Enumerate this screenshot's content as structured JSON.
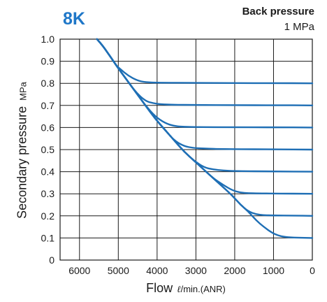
{
  "model_label": "8K",
  "back_pressure": {
    "title": "Back pressure",
    "value": "1 MPa"
  },
  "ylabel": "Secondary pressure",
  "ylabel_unit": "MPa",
  "xlabel": "Flow",
  "xlabel_unit_symbol": "ℓ",
  "xlabel_unit": "/min.(ANR)",
  "colors": {
    "curve": "#1f6fb5",
    "grid": "#1a1a1a",
    "title": "#1f77c8"
  },
  "chart_data": {
    "type": "line",
    "title": "8K",
    "xlabel": "Flow ℓ/min.(ANR)",
    "ylabel": "Secondary pressure MPa",
    "xlim": [
      6500,
      0
    ],
    "ylim": [
      0,
      1.0
    ],
    "x_reversed": true,
    "grid": true,
    "xticks": [
      6000,
      5000,
      4000,
      3000,
      2000,
      1000,
      0
    ],
    "yticks": [
      0,
      0.1,
      0.2,
      0.3,
      0.4,
      0.5,
      0.6,
      0.7,
      0.8,
      0.9,
      1.0
    ],
    "ytick_labels": [
      "0",
      "0.1",
      "0.2",
      "0.3",
      "0.4",
      "0.5",
      "0.6",
      "0.7",
      "0.8",
      "0.9",
      "1.0"
    ],
    "series": [
      {
        "x": [
          5550,
          5400,
          5200,
          5050,
          4950,
          4750,
          4500,
          4300,
          4000,
          3000,
          2000,
          1000,
          0
        ],
        "y": [
          1.0,
          0.97,
          0.92,
          0.88,
          0.865,
          0.835,
          0.812,
          0.805,
          0.803,
          0.802,
          0.801,
          0.801,
          0.8
        ]
      },
      {
        "x": [
          5550,
          5400,
          5200,
          5050,
          4800,
          4550,
          4300,
          4100,
          3900,
          3600,
          3000,
          2000,
          1000,
          0
        ],
        "y": [
          1.0,
          0.97,
          0.92,
          0.88,
          0.82,
          0.76,
          0.72,
          0.71,
          0.705,
          0.703,
          0.702,
          0.701,
          0.701,
          0.7
        ]
      },
      {
        "x": [
          5550,
          5400,
          5200,
          5050,
          4800,
          4550,
          4300,
          4050,
          3800,
          3550,
          3300,
          3000,
          2000,
          1000,
          0
        ],
        "y": [
          1.0,
          0.97,
          0.92,
          0.88,
          0.82,
          0.76,
          0.7,
          0.65,
          0.62,
          0.606,
          0.603,
          0.602,
          0.601,
          0.601,
          0.6
        ]
      },
      {
        "x": [
          5550,
          5400,
          5200,
          5050,
          4800,
          4550,
          4300,
          4050,
          3800,
          3550,
          3300,
          3050,
          2800,
          2500,
          2000,
          1000,
          0
        ],
        "y": [
          1.0,
          0.97,
          0.92,
          0.88,
          0.82,
          0.76,
          0.7,
          0.64,
          0.59,
          0.54,
          0.515,
          0.507,
          0.505,
          0.503,
          0.502,
          0.501,
          0.5
        ]
      },
      {
        "x": [
          5550,
          5400,
          5200,
          5050,
          4800,
          4550,
          4300,
          4050,
          3800,
          3550,
          3300,
          3050,
          2800,
          2550,
          2300,
          2000,
          1000,
          0
        ],
        "y": [
          1.0,
          0.97,
          0.92,
          0.88,
          0.82,
          0.76,
          0.7,
          0.64,
          0.59,
          0.54,
          0.49,
          0.45,
          0.42,
          0.41,
          0.405,
          0.403,
          0.401,
          0.4
        ]
      },
      {
        "x": [
          5550,
          5400,
          5200,
          5050,
          4800,
          4550,
          4300,
          4050,
          3800,
          3550,
          3300,
          3050,
          2800,
          2550,
          2300,
          2050,
          1850,
          1650,
          1400,
          1000,
          0
        ],
        "y": [
          1.0,
          0.97,
          0.92,
          0.88,
          0.82,
          0.76,
          0.7,
          0.64,
          0.59,
          0.54,
          0.49,
          0.45,
          0.41,
          0.37,
          0.34,
          0.315,
          0.305,
          0.303,
          0.302,
          0.301,
          0.3
        ]
      },
      {
        "x": [
          5550,
          5400,
          5200,
          5050,
          4800,
          4550,
          4300,
          4050,
          3800,
          3550,
          3300,
          3050,
          2800,
          2550,
          2300,
          2050,
          1850,
          1650,
          1450,
          1250,
          1000,
          500,
          0
        ],
        "y": [
          1.0,
          0.97,
          0.92,
          0.88,
          0.82,
          0.76,
          0.7,
          0.64,
          0.59,
          0.54,
          0.49,
          0.45,
          0.41,
          0.37,
          0.33,
          0.29,
          0.25,
          0.22,
          0.207,
          0.203,
          0.202,
          0.201,
          0.2
        ]
      },
      {
        "x": [
          5550,
          5400,
          5200,
          5050,
          4800,
          4550,
          4300,
          4050,
          3800,
          3550,
          3300,
          3050,
          2800,
          2550,
          2300,
          2050,
          1850,
          1650,
          1450,
          1250,
          1050,
          900,
          700,
          400,
          0
        ],
        "y": [
          1.0,
          0.97,
          0.92,
          0.88,
          0.82,
          0.76,
          0.7,
          0.64,
          0.59,
          0.54,
          0.49,
          0.45,
          0.41,
          0.37,
          0.33,
          0.29,
          0.25,
          0.22,
          0.18,
          0.15,
          0.125,
          0.112,
          0.104,
          0.101,
          0.1
        ]
      }
    ]
  }
}
